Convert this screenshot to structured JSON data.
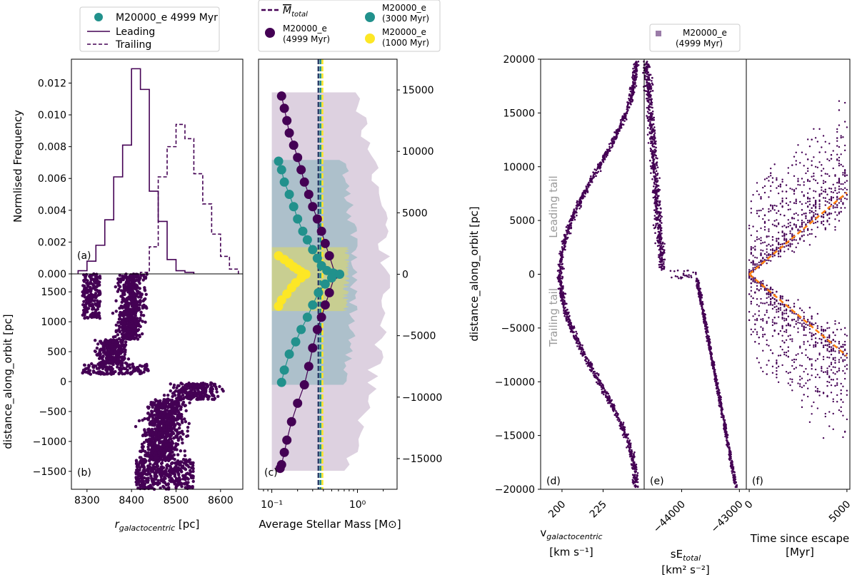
{
  "colors": {
    "purple": "#440154",
    "teal": "#21918c",
    "yellow": "#fde725",
    "dark_blue": "#2c3e6a",
    "orange": "#ff7f0e",
    "lightpurple": "#9b7ca8",
    "gray": "#9a9a9a"
  },
  "chart_data": [
    {
      "id": "a",
      "type": "histogram-step",
      "panel_label": "(a)",
      "ylabel": "Normlised Frequency",
      "xlim": [
        8265,
        8650
      ],
      "ylim": [
        0,
        0.0135
      ],
      "yticks": [
        "0.000",
        "0.002",
        "0.004",
        "0.006",
        "0.008",
        "0.010",
        "0.012"
      ],
      "ytick_values": [
        0,
        0.002,
        0.004,
        0.006,
        0.008,
        0.01,
        0.012
      ],
      "legend": {
        "scatter_label": "M20000_e 4999 Myr",
        "leading_label": "Leading",
        "trailing_label": "Trailing"
      },
      "series": [
        {
          "name": "Leading",
          "style": "solid",
          "edges": [
            8280,
            8300,
            8320,
            8340,
            8360,
            8380,
            8400,
            8420,
            8440,
            8460,
            8480,
            8500,
            8520,
            8540
          ],
          "values": [
            0.0002,
            0.0008,
            0.0018,
            0.0034,
            0.0061,
            0.0081,
            0.0129,
            0.0116,
            0.0052,
            0.0033,
            0.0009,
            0.0002,
            0.0001
          ]
        },
        {
          "name": "Trailing",
          "style": "dashed",
          "edges": [
            8420,
            8440,
            8460,
            8480,
            8500,
            8520,
            8540,
            8560,
            8580,
            8600,
            8620,
            8640
          ],
          "values": [
            0.0001,
            0.0017,
            0.0061,
            0.008,
            0.0094,
            0.0085,
            0.0063,
            0.0044,
            0.0025,
            0.0011,
            0.0003
          ]
        }
      ]
    },
    {
      "id": "b",
      "type": "scatter",
      "panel_label": "(b)",
      "xlabel": "r_galactocentric [pc]",
      "xlabel_main": "r",
      "xlabel_sub": "galactocentric",
      "xlabel_unit": " [pc]",
      "ylabel": "distance_along_orbit [pc]",
      "xlim": [
        8265,
        8650
      ],
      "ylim": [
        -1800,
        1800
      ],
      "xticks": [
        8300,
        8400,
        8500,
        8600
      ],
      "yticks": [
        1500,
        1000,
        500,
        0,
        -500,
        -1000,
        -1500
      ],
      "note": "Leading stars r 8290-8460 pc (d>0), trailing stars r 8380-8640 pc (d<0)"
    },
    {
      "id": "c",
      "type": "line-markers",
      "panel_label": "(c)",
      "xlabel": "Average Stellar Mass [M⊙]",
      "xscale": "log",
      "xlim": [
        0.07,
        2.9
      ],
      "ylim": [
        -17500,
        17500
      ],
      "yticks": [
        15000,
        10000,
        5000,
        0,
        -5000,
        -10000,
        -15000
      ],
      "xtick_labels": [
        "10⁻¹",
        "10⁰"
      ],
      "mean_lines": [
        {
          "label": "M̄_total",
          "x": 0.35,
          "color": "#2c3e6a"
        },
        {
          "x": 0.37,
          "color": "#21918c"
        },
        {
          "x": 0.39,
          "color": "#fde725"
        }
      ],
      "legend": {
        "mean_label": "M",
        "mean_sub": "total",
        "s4999_l1": "M20000_e",
        "s4999_l2": "(4999 Myr)",
        "s3000_l1": "M20000_e",
        "s3000_l2": "(3000 Myr)",
        "s1000_l1": "M20000_e",
        "s1000_l2": "(1000 Myr)"
      },
      "series": [
        {
          "name": "M20000_e (4999 Myr)",
          "color": "#440154",
          "x": [
            0.13,
            0.14,
            0.15,
            0.16,
            0.18,
            0.2,
            0.22,
            0.24,
            0.27,
            0.3,
            0.34,
            0.38,
            0.42,
            0.47,
            0.55,
            0.47,
            0.42,
            0.38,
            0.34,
            0.3,
            0.27,
            0.24,
            0.2,
            0.17,
            0.15,
            0.14,
            0.13,
            0.125
          ],
          "y": [
            14500,
            13500,
            12500,
            11500,
            10500,
            9500,
            8500,
            7500,
            6500,
            5500,
            4500,
            3500,
            2500,
            1500,
            0,
            -1500,
            -2500,
            -3500,
            -4500,
            -6000,
            -7500,
            -9000,
            -10500,
            -12000,
            -13500,
            -14500,
            -15500,
            -15800
          ]
        },
        {
          "name": "M20000_e (3000 Myr)",
          "color": "#21918c",
          "x": [
            0.12,
            0.13,
            0.14,
            0.16,
            0.18,
            0.2,
            0.23,
            0.26,
            0.3,
            0.34,
            0.38,
            0.44,
            0.52,
            0.62,
            0.5,
            0.42,
            0.35,
            0.3,
            0.26,
            0.22,
            0.19,
            0.16,
            0.14,
            0.13
          ],
          "y": [
            9200,
            8500,
            7500,
            6500,
            5500,
            4500,
            3500,
            2800,
            2000,
            1300,
            700,
            300,
            100,
            0,
            -300,
            -800,
            -1500,
            -2500,
            -3500,
            -4500,
            -5500,
            -6500,
            -7800,
            -8800
          ]
        },
        {
          "name": "M20000_e (1000 Myr)",
          "color": "#fde725",
          "x": [
            0.12,
            0.14,
            0.16,
            0.18,
            0.2,
            0.22,
            0.25,
            0.22,
            0.19,
            0.17,
            0.15,
            0.13,
            0.12
          ],
          "y": [
            1500,
            1200,
            900,
            600,
            400,
            200,
            0,
            -300,
            -700,
            -1100,
            -1600,
            -2100,
            -2600
          ]
        }
      ]
    },
    {
      "id": "d",
      "type": "scatter",
      "panel_label": "(d)",
      "xlabel_main": "v",
      "xlabel_sub": "galactocentric",
      "xlabel_unit": "[km s⁻¹]",
      "ylabel": "distance_along_orbit [pc]",
      "xlim": [
        187,
        250
      ],
      "ylim": [
        -20000,
        20000
      ],
      "xticks": [
        200,
        225
      ],
      "yticks": [
        20000,
        15000,
        10000,
        5000,
        0,
        -5000,
        -10000,
        -15000,
        -20000
      ],
      "annotations": [
        "Leading tail",
        "Trailing tail"
      ],
      "legend": {
        "l1": "M20000_e",
        "l2": "(4999 Myr)"
      }
    },
    {
      "id": "e",
      "type": "scatter",
      "panel_label": "(e)",
      "xlabel_main": "sE",
      "xlabel_sub": "total",
      "xlabel_unit": "[km² s⁻²]",
      "xlim": [
        -44650,
        -42880
      ],
      "ylim": [
        -20000,
        20000
      ],
      "xticks": [
        -44000,
        -43000
      ],
      "xtick_labels": [
        "−44000",
        "−43000"
      ]
    },
    {
      "id": "f",
      "type": "scatter",
      "panel_label": "(f)",
      "xlabel": "Time since escape",
      "xlabel_unit": "[Myr]",
      "xlim": [
        -150,
        5150
      ],
      "ylim": [
        -20000,
        20000
      ],
      "xticks": [
        0,
        5000
      ],
      "fit_lines": [
        {
          "x": [
            0,
            5000
          ],
          "y": [
            0,
            7600
          ]
        },
        {
          "x": [
            0,
            5000
          ],
          "y": [
            0,
            -7600
          ]
        }
      ]
    }
  ]
}
